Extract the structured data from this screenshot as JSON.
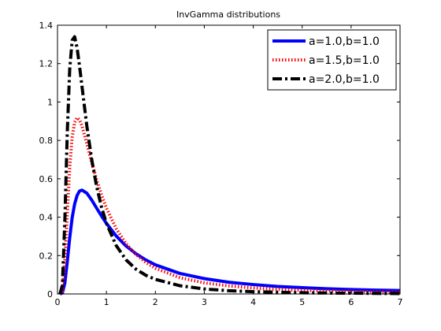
{
  "chart_data": {
    "type": "line",
    "title": "InvGamma distributions",
    "xlabel": "",
    "ylabel": "",
    "xlim": [
      0,
      7
    ],
    "ylim": [
      0,
      1.4
    ],
    "xticks": [
      "0",
      "1",
      "2",
      "3",
      "4",
      "5",
      "6",
      "7"
    ],
    "yticks": [
      "0",
      "0.2",
      "0.4",
      "0.6",
      "0.8",
      "1",
      "1.2",
      "1.4"
    ],
    "grid": false,
    "legend_position": "top-right",
    "series": [
      {
        "name": "a=1.0,b=1.0",
        "color": "#0000ff",
        "style": "solid",
        "x": [
          0.05,
          0.1,
          0.15,
          0.2,
          0.25,
          0.3,
          0.35,
          0.4,
          0.45,
          0.5,
          0.6,
          0.7,
          0.8,
          0.9,
          1.0,
          1.2,
          1.4,
          1.6,
          1.8,
          2.0,
          2.5,
          3.0,
          3.5,
          4.0,
          4.5,
          5.0,
          5.5,
          6.0,
          6.5,
          7.0
        ],
        "y": [
          0.0,
          0.005,
          0.056,
          0.168,
          0.293,
          0.397,
          0.468,
          0.513,
          0.536,
          0.541,
          0.525,
          0.489,
          0.447,
          0.406,
          0.368,
          0.302,
          0.25,
          0.21,
          0.178,
          0.152,
          0.107,
          0.08,
          0.061,
          0.049,
          0.039,
          0.033,
          0.027,
          0.023,
          0.02,
          0.018
        ]
      },
      {
        "name": "a=1.5,b=1.0",
        "color": "#ff0000",
        "style": "dotted",
        "x": [
          0.05,
          0.1,
          0.15,
          0.2,
          0.25,
          0.3,
          0.35,
          0.4,
          0.45,
          0.5,
          0.6,
          0.7,
          0.8,
          0.9,
          1.0,
          1.2,
          1.4,
          1.6,
          1.8,
          2.0,
          2.5,
          3.0,
          3.5,
          4.0,
          4.5,
          5.0,
          5.5,
          6.0,
          6.5,
          7.0
        ],
        "y": [
          0.0,
          0.013,
          0.165,
          0.422,
          0.661,
          0.815,
          0.894,
          0.918,
          0.907,
          0.876,
          0.783,
          0.685,
          0.594,
          0.515,
          0.447,
          0.34,
          0.262,
          0.206,
          0.165,
          0.134,
          0.085,
          0.058,
          0.042,
          0.031,
          0.024,
          0.019,
          0.016,
          0.013,
          0.011,
          0.009
        ]
      },
      {
        "name": "a=2.0,b=1.0",
        "color": "#000000",
        "style": "dashdot",
        "x": [
          0.05,
          0.1,
          0.15,
          0.2,
          0.25,
          0.3,
          0.35,
          0.4,
          0.45,
          0.5,
          0.6,
          0.7,
          0.8,
          0.9,
          1.0,
          1.2,
          1.4,
          1.6,
          1.8,
          2.0,
          2.5,
          3.0,
          3.5,
          4.0,
          4.5,
          5.0,
          5.5,
          6.0,
          6.5,
          7.0
        ],
        "y": [
          0.0,
          0.045,
          0.38,
          0.842,
          1.172,
          1.321,
          1.34,
          1.282,
          1.188,
          1.083,
          0.874,
          0.699,
          0.56,
          0.452,
          0.368,
          0.252,
          0.178,
          0.13,
          0.098,
          0.076,
          0.043,
          0.026,
          0.017,
          0.012,
          0.009,
          0.006,
          0.005,
          0.004,
          0.003,
          0.002
        ]
      }
    ]
  }
}
